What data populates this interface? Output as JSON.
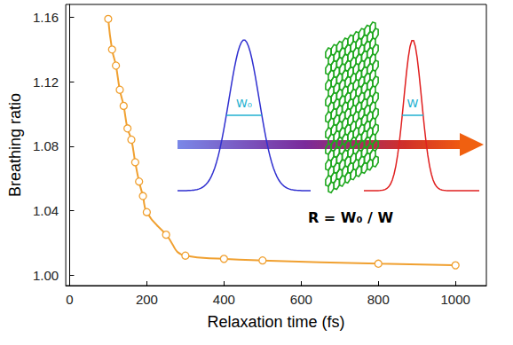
{
  "chart_data": {
    "type": "line",
    "x_label": "Relaxation time (fs)",
    "y_label": "Breathing ratio",
    "x": [
      100,
      110,
      120,
      130,
      140,
      150,
      160,
      170,
      180,
      190,
      200,
      250,
      300,
      400,
      500,
      800,
      1000
    ],
    "values": [
      1.159,
      1.14,
      1.13,
      1.115,
      1.105,
      1.091,
      1.084,
      1.07,
      1.058,
      1.049,
      1.039,
      1.025,
      1.012,
      1.01,
      1.009,
      1.007,
      1.006
    ],
    "color": "#f0a030",
    "marker": "hollow",
    "line_style": "smooth",
    "xlim": [
      -10,
      1080
    ],
    "xticks": [
      0,
      200,
      400,
      600,
      800,
      1000
    ],
    "ylim": [
      0.9934,
      1.168
    ],
    "yticks": [
      {
        "value": 1.0,
        "label": "1.00"
      },
      {
        "value": 1.04,
        "label": "1.04"
      },
      {
        "value": 1.08,
        "label": "1.08"
      },
      {
        "value": 1.12,
        "label": "1.12"
      },
      {
        "value": 1.16,
        "label": "1.16"
      }
    ],
    "grid": false,
    "annotations": [
      "W₀",
      "W",
      "R = W₀ / W"
    ]
  }
}
